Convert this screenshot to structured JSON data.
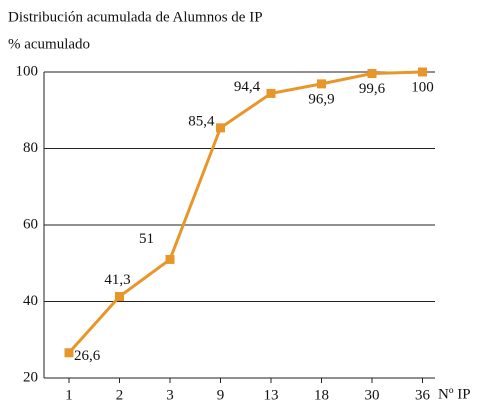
{
  "chart_data": {
    "type": "line",
    "title": "Distribución acumulada de Alumnos de IP",
    "y_label": "% acumulado",
    "x_label": "Nº IP",
    "categories": [
      "1",
      "2",
      "3",
      "9",
      "13",
      "18",
      "30",
      "36"
    ],
    "values": [
      26.6,
      41.3,
      51,
      85.4,
      94.4,
      96.9,
      99.6,
      100
    ],
    "value_labels": [
      "26,6",
      "41,3",
      "51",
      "85,4",
      "94,4",
      "96,9",
      "99,6",
      "100"
    ],
    "color": "#e8962a",
    "ylim": [
      20,
      100
    ],
    "yticks": [
      20,
      40,
      60,
      80,
      100
    ],
    "grid": true
  }
}
